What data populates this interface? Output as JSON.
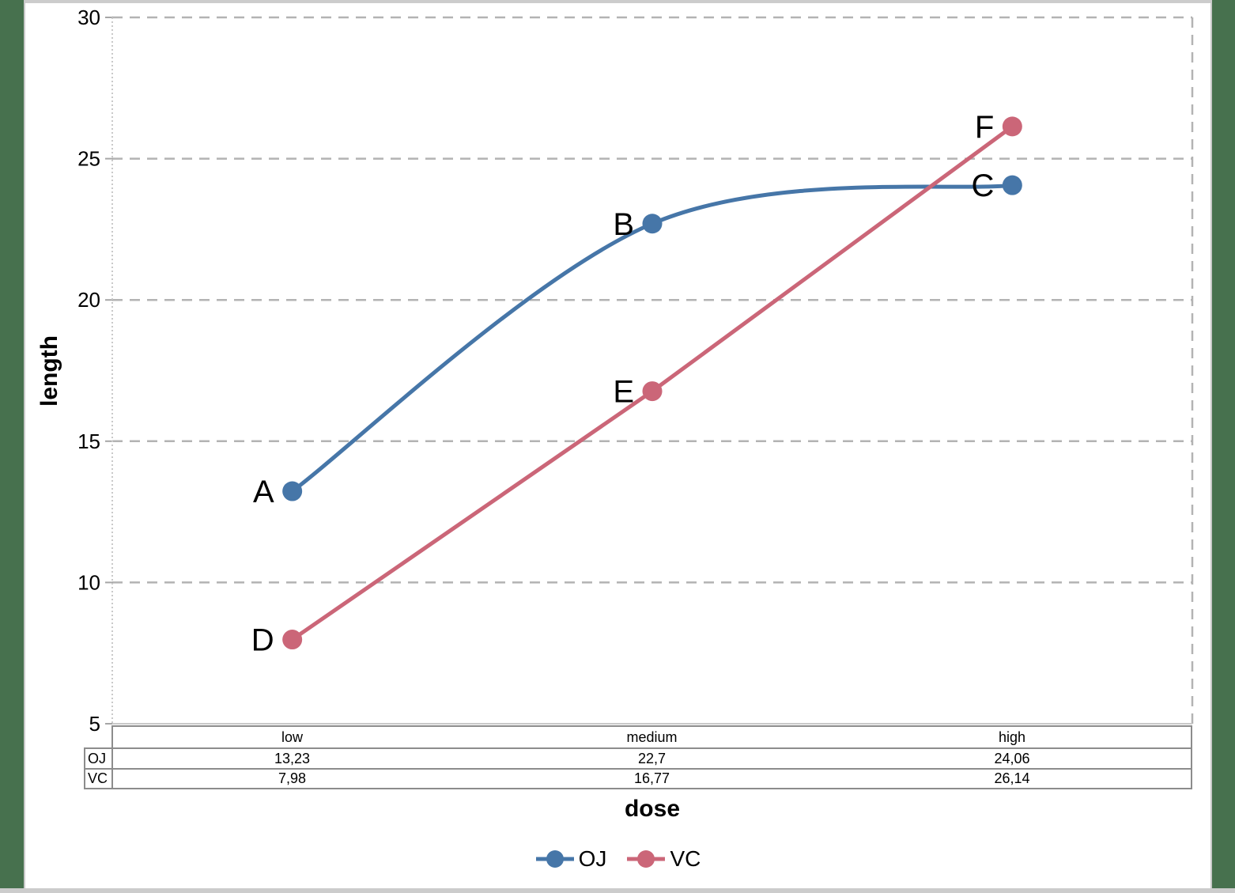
{
  "chart_data": {
    "type": "line",
    "x_categories": [
      "low",
      "medium",
      "high"
    ],
    "series": [
      {
        "name": "OJ",
        "color": "#4676A8",
        "smooth": true,
        "values": [
          13.23,
          22.7,
          24.06
        ],
        "point_labels": [
          "A",
          "B",
          "C"
        ]
      },
      {
        "name": "VC",
        "color": "#CB6678",
        "smooth": false,
        "values": [
          7.98,
          16.77,
          26.14
        ],
        "point_labels": [
          "D",
          "E",
          "F"
        ]
      }
    ],
    "xlabel": "dose",
    "ylabel": "length",
    "ylim": [
      5,
      30
    ],
    "yticks": [
      5,
      10,
      15,
      20,
      25,
      30
    ],
    "grid": "horizontal dashed, vertical dashed right border",
    "legend_position": "bottom",
    "colors": {
      "gridline": "#B3B3B3",
      "axis": "#C9C9C9",
      "tick": "#A6A6A6",
      "table_line": "#8C8C8C",
      "frame_green": "#47714E",
      "frame_gray": "#CCCCCC"
    }
  },
  "table": {
    "col_headers": [
      "low",
      "medium",
      "high"
    ],
    "rows": [
      {
        "label": "OJ",
        "values": [
          "13,23",
          "22,7",
          "24,06"
        ]
      },
      {
        "label": "VC",
        "values": [
          "7,98",
          "16,77",
          "26,14"
        ]
      }
    ]
  }
}
